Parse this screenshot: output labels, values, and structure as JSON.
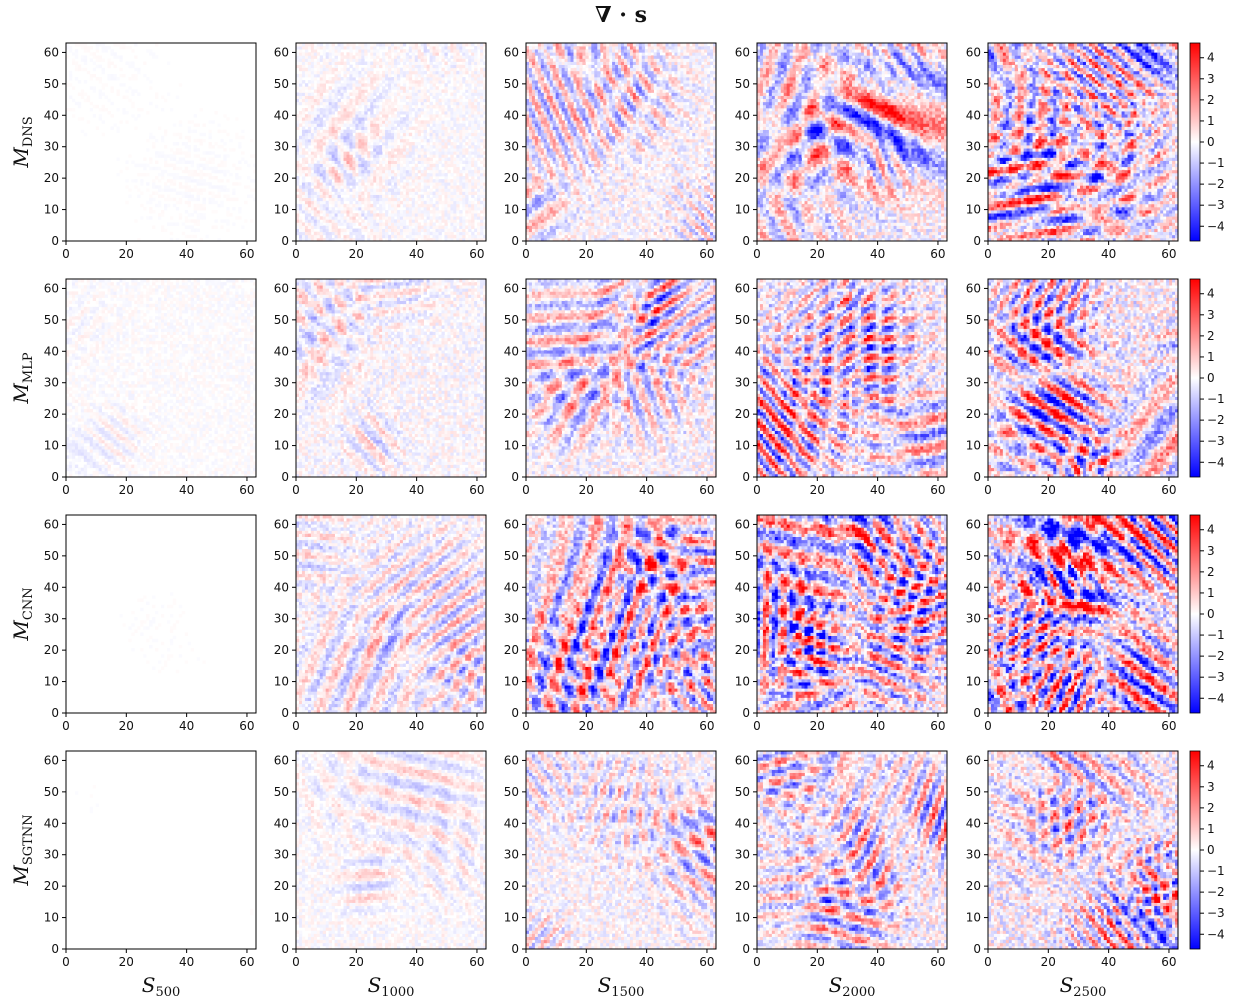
{
  "chart_data": {
    "type": "heatmap",
    "title": "∇ · s",
    "rows": [
      {
        "label": "M",
        "sub": "DNS"
      },
      {
        "label": "M",
        "sub": "MLP"
      },
      {
        "label": "M",
        "sub": "CNN"
      },
      {
        "label": "M",
        "sub": "SGTNN"
      }
    ],
    "columns": [
      {
        "label": "S",
        "sub": "500"
      },
      {
        "label": "S",
        "sub": "1000"
      },
      {
        "label": "S",
        "sub": "1500"
      },
      {
        "label": "S",
        "sub": "2000"
      },
      {
        "label": "S",
        "sub": "2500"
      }
    ],
    "x_ticks": [
      0,
      20,
      40,
      60
    ],
    "y_ticks": [
      0,
      10,
      20,
      30,
      40,
      50,
      60
    ],
    "grid_range": [
      0,
      63
    ],
    "colorbar": {
      "colormap": "bwr",
      "vmin": -4.7,
      "vmax": 4.7,
      "ticks": [
        4,
        3,
        2,
        1,
        0,
        -1,
        -2,
        -3,
        -4
      ],
      "tick_labels": [
        "4",
        "3",
        "2",
        "1",
        "0",
        "−1",
        "−2",
        "−3",
        "−4"
      ]
    },
    "intensity": [
      [
        0.03,
        0.22,
        0.42,
        0.62,
        0.75
      ],
      [
        0.12,
        0.32,
        0.47,
        0.64,
        0.72
      ],
      [
        0.02,
        0.38,
        0.68,
        0.85,
        0.95
      ],
      [
        0.02,
        0.22,
        0.42,
        0.58,
        0.68
      ]
    ],
    "colors": {
      "positive": "#ff0000",
      "negative": "#0000ff",
      "zero": "#ffffff"
    }
  }
}
